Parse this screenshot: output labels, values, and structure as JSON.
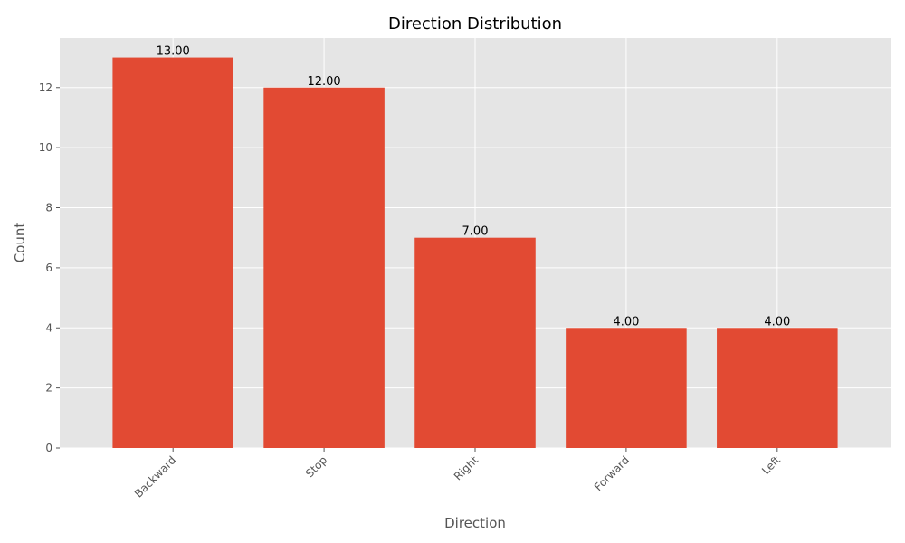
{
  "chart_data": {
    "type": "bar",
    "title": "Direction Distribution",
    "xlabel": "Direction",
    "ylabel": "Count",
    "categories": [
      "Backward",
      "Stop",
      "Right",
      "Forward",
      "Left"
    ],
    "values": [
      13,
      12,
      7,
      4,
      4
    ],
    "data_labels": [
      "13.00",
      "12.00",
      "7.00",
      "4.00",
      "4.00"
    ],
    "ylim": [
      0,
      13.65
    ],
    "yticks": [
      0,
      2,
      4,
      6,
      8,
      10,
      12
    ],
    "grid": true,
    "legend": "none",
    "colors": {
      "bar": "#E24A33",
      "plot_background": "#E5E5E5",
      "grid": "#FFFFFF"
    }
  }
}
